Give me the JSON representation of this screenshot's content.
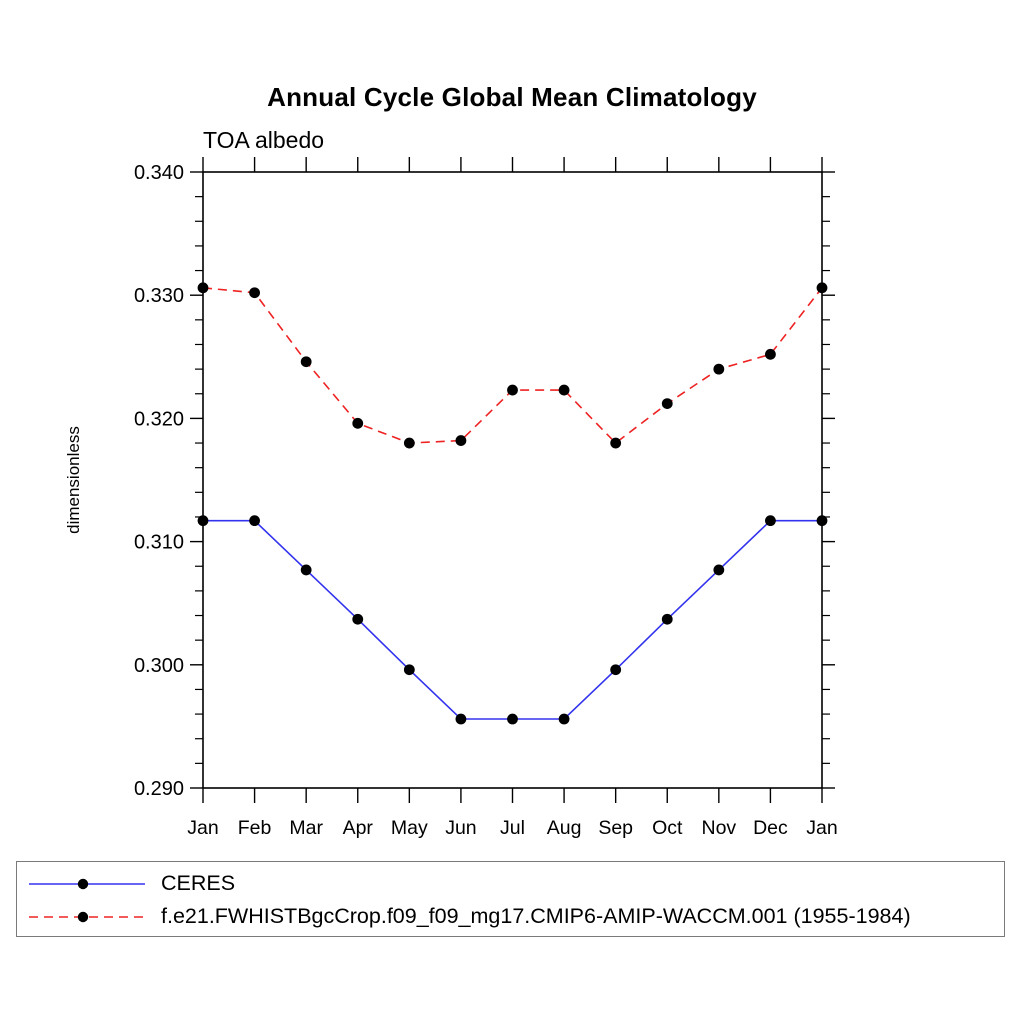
{
  "chart_data": {
    "type": "line",
    "title": "Annual Cycle Global Mean Climatology",
    "subtitle": "TOA albedo",
    "ylabel": "dimensionless",
    "xlabel": "",
    "categories": [
      "Jan",
      "Feb",
      "Mar",
      "Apr",
      "May",
      "Jun",
      "Jul",
      "Aug",
      "Sep",
      "Oct",
      "Nov",
      "Dec",
      "Jan"
    ],
    "ylim": [
      0.29,
      0.34
    ],
    "ytick_major_step": 0.01,
    "ytick_minor_step": 0.002,
    "ytick_labels": [
      "0.290",
      "0.300",
      "0.310",
      "0.320",
      "0.330",
      "0.340"
    ],
    "grid": false,
    "legend_position": "bottom",
    "marker": "filled-circle",
    "marker_color": "#000000",
    "frame_color": "#000000",
    "series": [
      {
        "name": "CERES",
        "color": "#3333ee",
        "style": "solid",
        "values": [
          0.3117,
          0.3117,
          0.3077,
          0.3037,
          0.2996,
          0.2956,
          0.2956,
          0.2956,
          0.2996,
          0.3037,
          0.3077,
          0.3117,
          0.3117
        ]
      },
      {
        "name": "f.e21.FWHISTBgcCrop.f09_f09_mg17.CMIP6-AMIP-WACCM.001 (1955-1984)",
        "color": "#ee2222",
        "style": "dashed",
        "values": [
          0.3306,
          0.3302,
          0.3246,
          0.3196,
          0.318,
          0.3182,
          0.3223,
          0.3223,
          0.318,
          0.3212,
          0.324,
          0.3252,
          0.3306
        ]
      }
    ]
  }
}
